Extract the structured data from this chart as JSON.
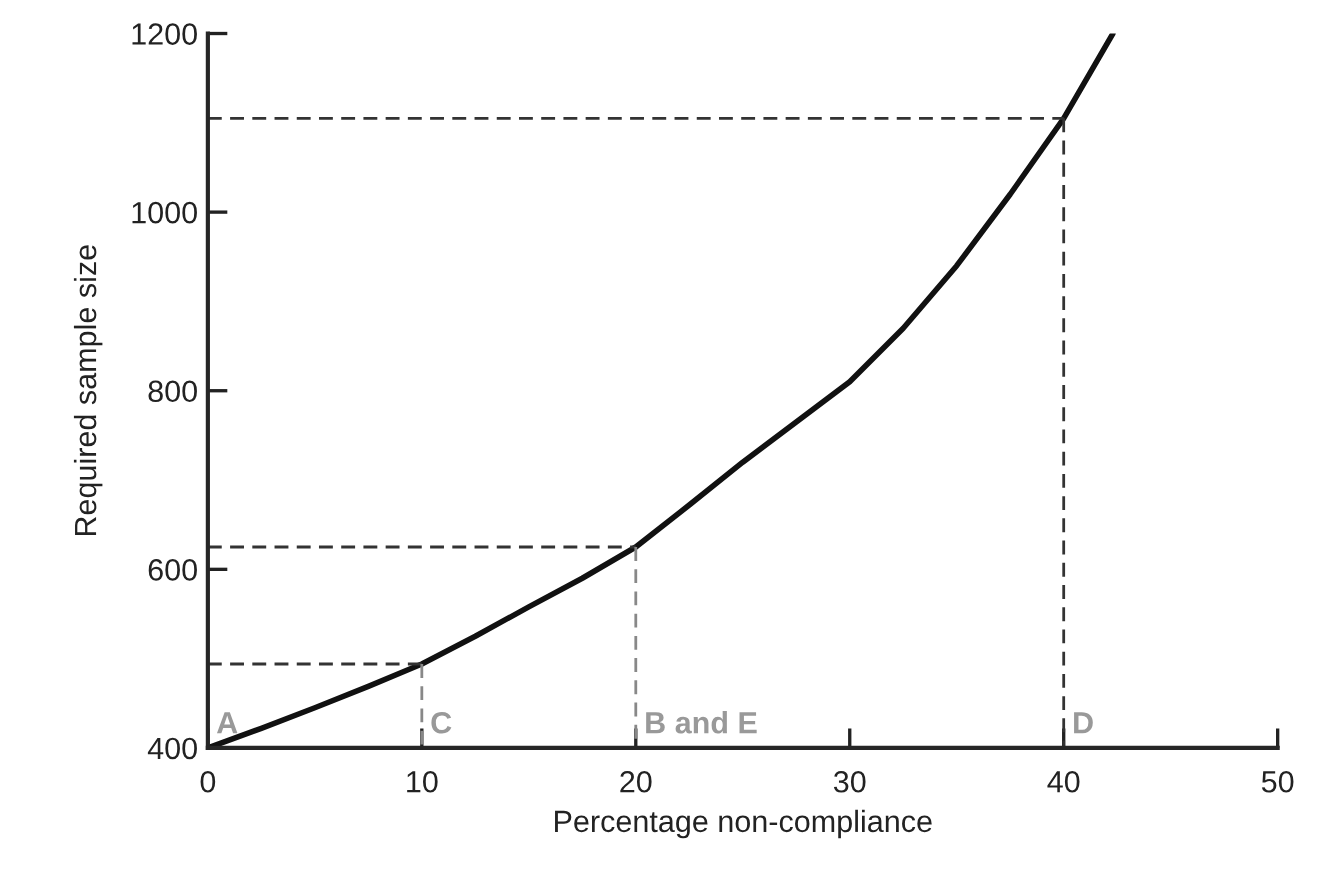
{
  "chart_data": {
    "type": "line",
    "xlabel": "Percentage non-compliance",
    "ylabel": "Required sample size",
    "xlim": [
      0,
      50
    ],
    "ylim": [
      400,
      1200
    ],
    "xticks": [
      0,
      10,
      20,
      30,
      40,
      50
    ],
    "yticks": [
      400,
      600,
      800,
      1000,
      1200
    ],
    "grid": false,
    "legend": false,
    "marker": "none",
    "series": [
      {
        "color": "#111111",
        "line_style": "solid",
        "x": [
          0,
          2.5,
          5,
          7.5,
          10,
          12.5,
          15,
          17.5,
          20,
          22.5,
          25,
          27.5,
          30,
          32.5,
          35,
          37.5,
          40,
          42.3
        ],
        "values": [
          400,
          422,
          445,
          469,
          494,
          525,
          558,
          590,
          625,
          672,
          720,
          765,
          810,
          870,
          940,
          1020,
          1105,
          1200
        ]
      },
      {
        "color": "#333333",
        "line_style": "dashed",
        "x": [
          0,
          10
        ],
        "values": [
          494,
          494
        ]
      },
      {
        "color": "#888888",
        "line_style": "dashed",
        "x": [
          10,
          10
        ],
        "values": [
          494,
          400
        ]
      },
      {
        "color": "#333333",
        "line_style": "dashed",
        "x": [
          0,
          20
        ],
        "values": [
          625,
          625
        ]
      },
      {
        "color": "#888888",
        "line_style": "dashed",
        "x": [
          20,
          20
        ],
        "values": [
          625,
          400
        ]
      },
      {
        "color": "#333333",
        "line_style": "dashed",
        "x": [
          0,
          40
        ],
        "values": [
          1105,
          1105
        ]
      },
      {
        "color": "#333333",
        "line_style": "dashed",
        "x": [
          40,
          40
        ],
        "values": [
          1105,
          400
        ]
      }
    ],
    "annotations": [
      {
        "text": "A",
        "x": 0,
        "y": 400
      },
      {
        "text": "C",
        "x": 10,
        "y": 400
      },
      {
        "text": "B and E",
        "x": 20,
        "y": 400
      },
      {
        "text": "D",
        "x": 40,
        "y": 400
      }
    ]
  }
}
